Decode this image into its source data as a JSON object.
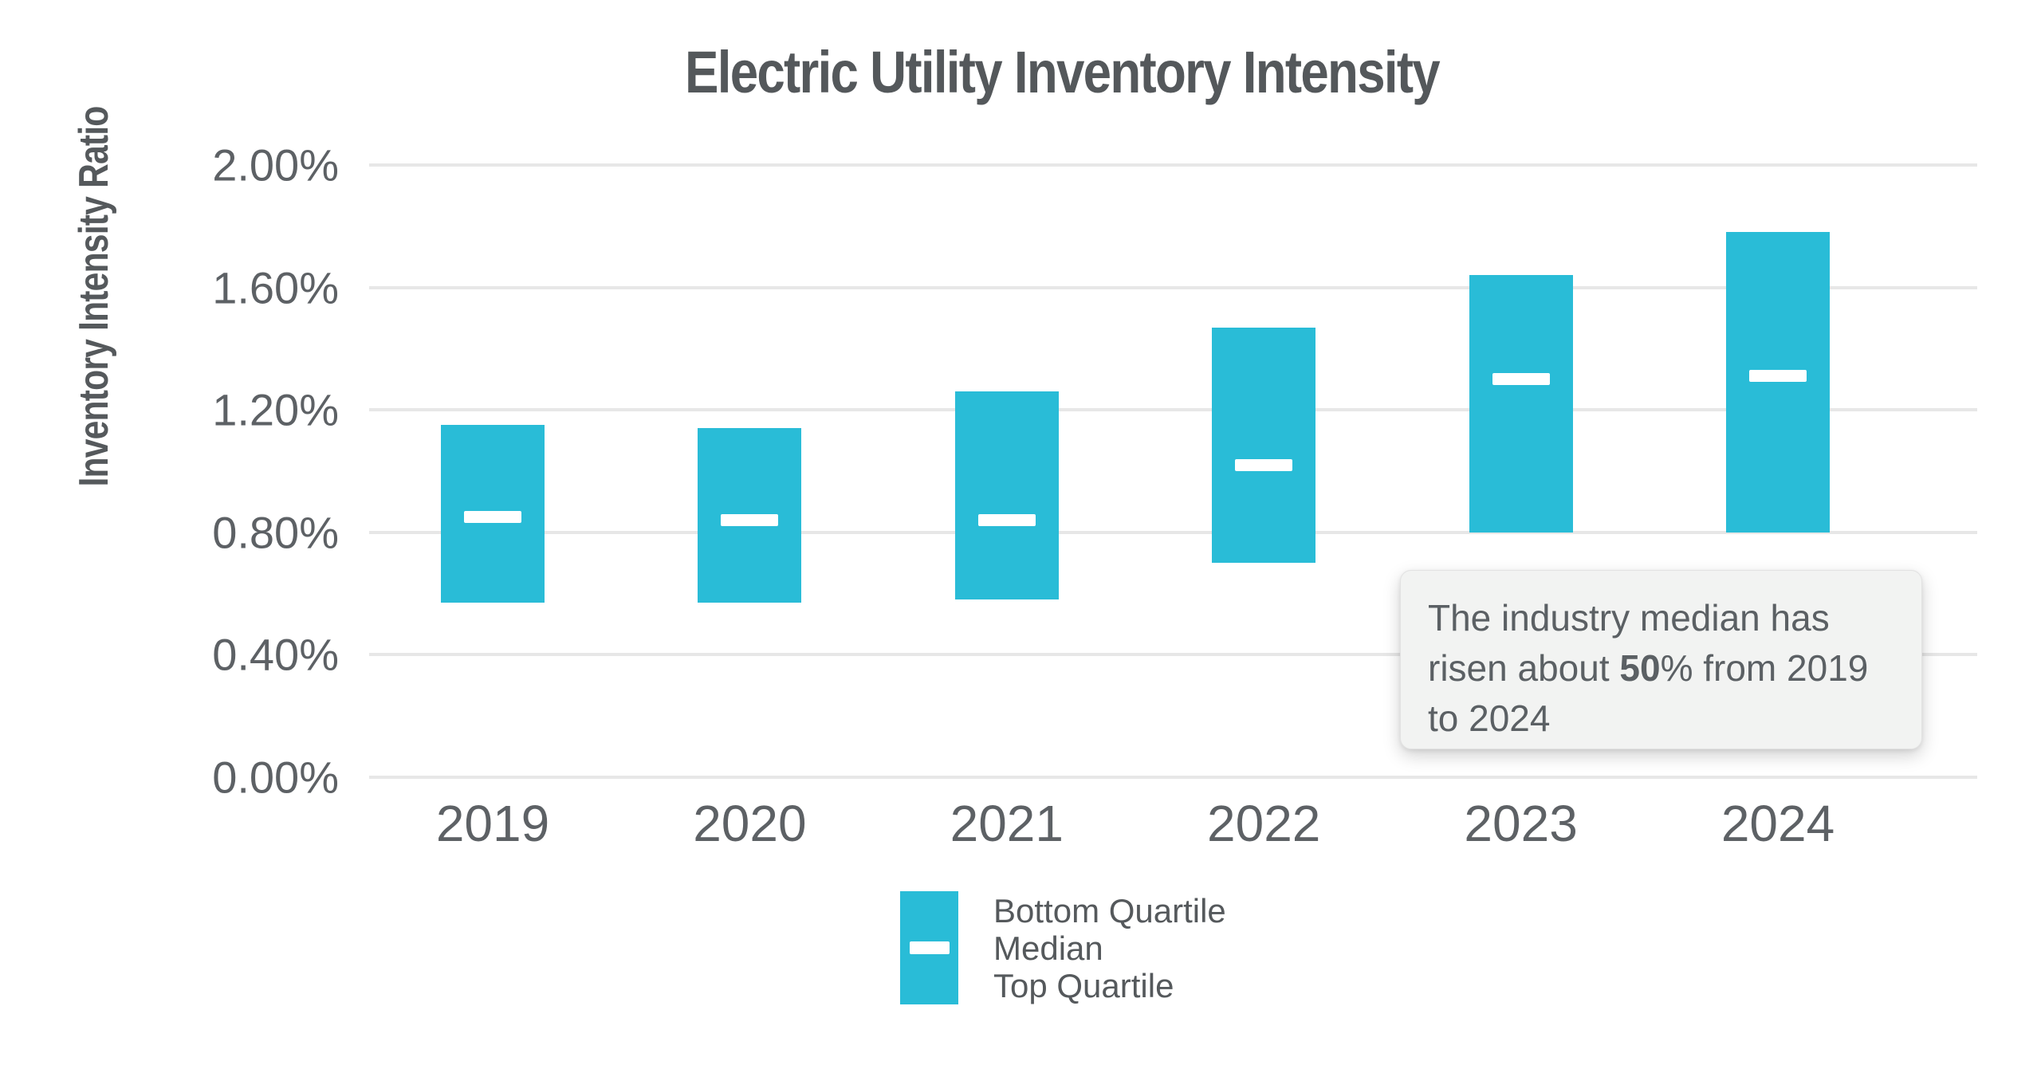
{
  "title": "Electric Utility Inventory Intensity",
  "y_axis_title": "Inventory Intensity Ratio",
  "legend": {
    "items": [
      "Bottom Quartile",
      "Median",
      "Top Quartile"
    ]
  },
  "annotation": {
    "text_before": "The industry median has risen about ",
    "highlight": "50",
    "text_after": "% from 2019 to 2024"
  },
  "colors": {
    "bar": "#29bcd7",
    "median_dash": "#ffffff",
    "gridline": "#e7e7e7",
    "text": "#5d6165",
    "title_text": "#54585b",
    "annotation_bg": "#f2f3f2"
  },
  "chart_data": {
    "type": "bar",
    "subtype": "floating-range-bars-with-median",
    "title": "Electric Utility Inventory Intensity",
    "xlabel": "",
    "ylabel": "Inventory Intensity Ratio",
    "categories": [
      "2019",
      "2020",
      "2021",
      "2022",
      "2023",
      "2024"
    ],
    "series": [
      {
        "name": "Bottom Quartile",
        "values": [
          0.57,
          0.57,
          0.58,
          0.7,
          0.8,
          0.8
        ]
      },
      {
        "name": "Median",
        "values": [
          0.85,
          0.84,
          0.84,
          1.02,
          1.3,
          1.31
        ]
      },
      {
        "name": "Top Quartile",
        "values": [
          1.15,
          1.14,
          1.26,
          1.47,
          1.64,
          1.78
        ]
      }
    ],
    "value_unit": "%",
    "ylim": [
      0,
      2.0
    ],
    "ytick_values": [
      0,
      0.4,
      0.8,
      1.2,
      1.6,
      2.0
    ],
    "ytick_labels": [
      "0.00%",
      "0.40%",
      "0.80%",
      "1.20%",
      "1.60%",
      "2.00%"
    ],
    "grid": "horizontal",
    "legend_position": "bottom"
  }
}
